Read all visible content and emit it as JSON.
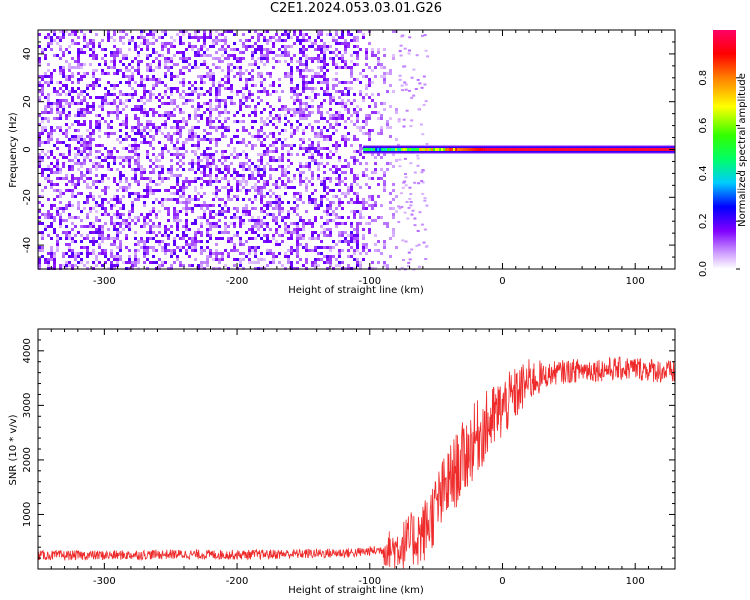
{
  "title": "C2E1.2024.053.03.01.G26",
  "chart_data": [
    {
      "type": "heatmap",
      "xlabel": "Height of straight line (km)",
      "ylabel": "Frequency (Hz)",
      "xlim": [
        -350,
        130
      ],
      "ylim": [
        -50,
        50
      ],
      "x_ticks": [
        -300,
        -200,
        -100,
        0,
        100
      ],
      "y_ticks": [
        -40,
        -20,
        0,
        20,
        40
      ],
      "colorbar": {
        "label": "Normalized spectral amplitude",
        "range": [
          0,
          1
        ],
        "ticks": [
          0.0,
          0.2,
          0.4,
          0.6,
          0.8
        ],
        "tick_labels": [
          "0.0",
          "0.2",
          "0.4",
          "0.6",
          "0.8"
        ]
      },
      "structure": {
        "noise_region_x": [
          -350,
          -80
        ],
        "noise_amplitude": 0.1,
        "signal_line_frequency_hz": 0,
        "signal_line_x": [
          -105,
          130
        ],
        "signal_amplitude_at_start": 0.35,
        "signal_amplitude_at_end": 0.95
      }
    },
    {
      "type": "line",
      "xlabel": "Height of straight line (km)",
      "ylabel": "SNR (10 * v/v)",
      "xlim": [
        -350,
        130
      ],
      "ylim": [
        0,
        4400
      ],
      "x_ticks": [
        -300,
        -200,
        -100,
        0,
        100
      ],
      "y_ticks": [
        1000,
        2000,
        3000,
        4000
      ],
      "series": [
        {
          "color": "#ee2a2a",
          "x": [
            -350,
            -300,
            -250,
            -200,
            -150,
            -110,
            -80,
            -60,
            -40,
            -20,
            0,
            20,
            40,
            60,
            80,
            100,
            130
          ],
          "y": [
            250,
            250,
            270,
            260,
            280,
            300,
            380,
            650,
            1600,
            2400,
            2950,
            3450,
            3600,
            3650,
            3660,
            3680,
            3600
          ]
        }
      ]
    }
  ]
}
